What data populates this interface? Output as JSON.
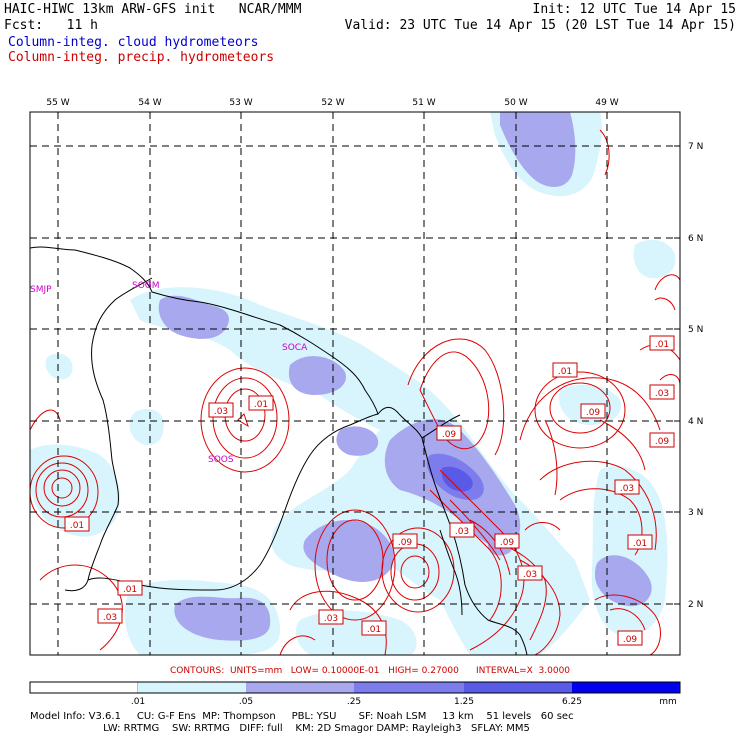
{
  "header": {
    "title": "HAIC-HIWC 13km ARW-GFS init   NCAR/MMM",
    "forecast": "Fcst:   11 h",
    "init": "Init: 12 UTC Tue 14 Apr 15",
    "valid": "Valid: 23 UTC Tue 14 Apr 15 (20 LST Tue 14 Apr 15)",
    "legend_cloud": "Column-integ. cloud hydrometeors",
    "legend_precip": "Column-integ. precip. hydrometeors"
  },
  "colors": {
    "cloud_text": "#0000cc",
    "precip_text": "#cc0000",
    "shade_1": "#d8f4fc",
    "shade_2": "#a8a8ee",
    "shade_3": "#7c7cec",
    "shade_4": "#5a5ae8",
    "shade_5": "#3333ee",
    "shade_6": "#0000ee",
    "contour": "#dd0000",
    "grid": "#000000"
  },
  "longitude_labels": [
    "55 W",
    "54 W",
    "53 W",
    "52 W",
    "51 W",
    "50 W",
    "49 W"
  ],
  "latitude_labels": [
    "7 N",
    "6 N",
    "5 N",
    "4 N",
    "3 N",
    "2 N"
  ],
  "stations": [
    "SMJP",
    "SOGM",
    "SOCA",
    "SOOS"
  ],
  "contour_labels": [
    ".03",
    ".01",
    ".01",
    ".03",
    ".09",
    ".09",
    ".03",
    ".01",
    ".09",
    ".09",
    ".03",
    ".01",
    ".09",
    ".03",
    ".03",
    ".01",
    ".01",
    ".09"
  ],
  "contours_info": "CONTOURS:  UNITS=mm   LOW= 0.10000E-01   HIGH= 0.27000      INTERVAL=X  3.0000",
  "colorbar": {
    "labels": [
      ".01",
      ".05",
      ".25",
      "1.25",
      "6.25"
    ],
    "units": "mm"
  },
  "footer": {
    "line1": "Model Info: V3.6.1     CU: G-F Ens  MP: Thompson     PBL: YSU       SF: Noah LSM     13 km    51 levels   60 sec",
    "line2": "                       LW: RRTMG    SW: RRTMG   DIFF: full    KM: 2D Smagor DAMP: Rayleigh3   SFLAY: MM5"
  }
}
